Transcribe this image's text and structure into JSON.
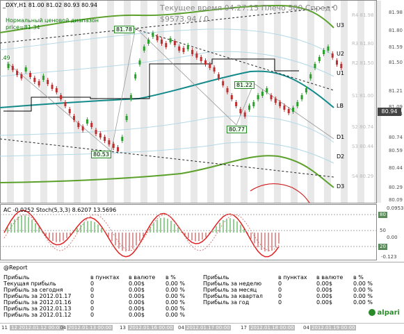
{
  "chart": {
    "symbol_header": "_DXY,H1  81.00 81.02 80.93 80.94",
    "indicator1": "Нормальный ценовой диапазон",
    "indicator2": "price=81.34",
    "time_info": "Текущее время 04:27:15 Плечо 500 Спред 0",
    "pnl": "$9573.94",
    "pnl_suffix": "/ 0.",
    "current_price": "80.94",
    "price_axis": [
      "81.98",
      "81.80",
      "81.59",
      "81.50",
      "81.21",
      "81.09",
      "80.94",
      "80.74",
      "80.59",
      "80.44",
      "80.29",
      "80.09"
    ],
    "levels": [
      {
        "tag": "U3",
        "value": "R4 81.98"
      },
      {
        "tag": "U2",
        "value": "R3 81.80"
      },
      {
        "tag": "U1",
        "value": "R2 81.50"
      },
      {
        "tag": "LB",
        "value": "S1 81.00"
      },
      {
        "tag": "D1",
        "value": "S2 80.74"
      },
      {
        "tag": "D2",
        "value": "S3 80.44"
      },
      {
        "tag": "D3",
        "value": "S4 80.29"
      }
    ],
    "swing_labels": [
      "81.78",
      "81.22",
      "80.77",
      "80.53"
    ],
    "left_label": ".49",
    "colors": {
      "bands": "#5aa02a",
      "middle": "#128a8a",
      "candle_up": "#2aa02a",
      "candle_down": "#c03030",
      "fast_band": "#b3d9e8"
    }
  },
  "oscillator": {
    "header": "AC -0.0252  Stoch(5,3,3) 8.6207 13.5696",
    "axis": [
      "80",
      "50",
      "20"
    ],
    "axis_extra": [
      "0.0953",
      "0.00",
      "-0.123"
    ],
    "box_labels": [
      "80",
      "20"
    ]
  },
  "report": {
    "title": "@Report",
    "left_header": {
      "label": "Прибыль",
      "pts": "в пунктах",
      "cur": "в валюте",
      "pct": "в %"
    },
    "left_rows": [
      {
        "label": "Текущая прибыль",
        "pts": "0",
        "cur": "0.00$",
        "pct": "0.00 %"
      },
      {
        "label": "Прибыль за сегодня",
        "pts": "0",
        "cur": "0.00$",
        "pct": "0.00 %"
      },
      {
        "label": "Прибыль за 2012.01.17",
        "pts": "0",
        "cur": "0.00$",
        "pct": "0.00 %"
      },
      {
        "label": "Прибыль за 2012.01.16",
        "pts": "0",
        "cur": "0.00$",
        "pct": "0.00 %"
      },
      {
        "label": "Прибыль за 2012.01.13",
        "pts": "0",
        "cur": "0.00$",
        "pct": "0.00 %"
      },
      {
        "label": "Прибыль за 2012.01.12",
        "pts": "0",
        "cur": "0.00$",
        "pct": "0.00 %"
      }
    ],
    "right_header": {
      "label": "Прибыль",
      "pts": "в пунктах",
      "cur": "в валюте",
      "pct": "в %"
    },
    "right_rows": [
      {
        "label": "Прибыль за неделю",
        "pts": "0",
        "cur": "0.00$",
        "pct": "0.00 %"
      },
      {
        "label": "Прибыль за месяц",
        "pts": "0",
        "cur": "0.00$",
        "pct": "0.00 %"
      },
      {
        "label": "Прибыль за квартал",
        "pts": "0",
        "cur": "0.00$",
        "pct": "0.00 %"
      },
      {
        "label": "Прибыль за год",
        "pts": "0",
        "cur": "0.00$",
        "pct": "0.00 %"
      }
    ]
  },
  "time_axis": [
    {
      "label": "11",
      "hl": false
    },
    {
      "label": "12 2012.01.12 00:00",
      "hl": true
    },
    {
      "label": "04",
      "hl": false
    },
    {
      "label": "2012.01.13 00:00",
      "hl": true
    },
    {
      "label": "13",
      "hl": false
    },
    {
      "label": "2012.01.16 00:00",
      "hl": true
    },
    {
      "label": "04",
      "hl": false
    },
    {
      "label": "2012.01.17 00:00",
      "hl": true
    },
    {
      "label": "17",
      "hl": false
    },
    {
      "label": "2012.01.18 00:00",
      "hl": true
    },
    {
      "label": "04",
      "hl": false
    },
    {
      "label": "2012.01.19 00:00",
      "hl": true
    }
  ],
  "logo": "alpari"
}
